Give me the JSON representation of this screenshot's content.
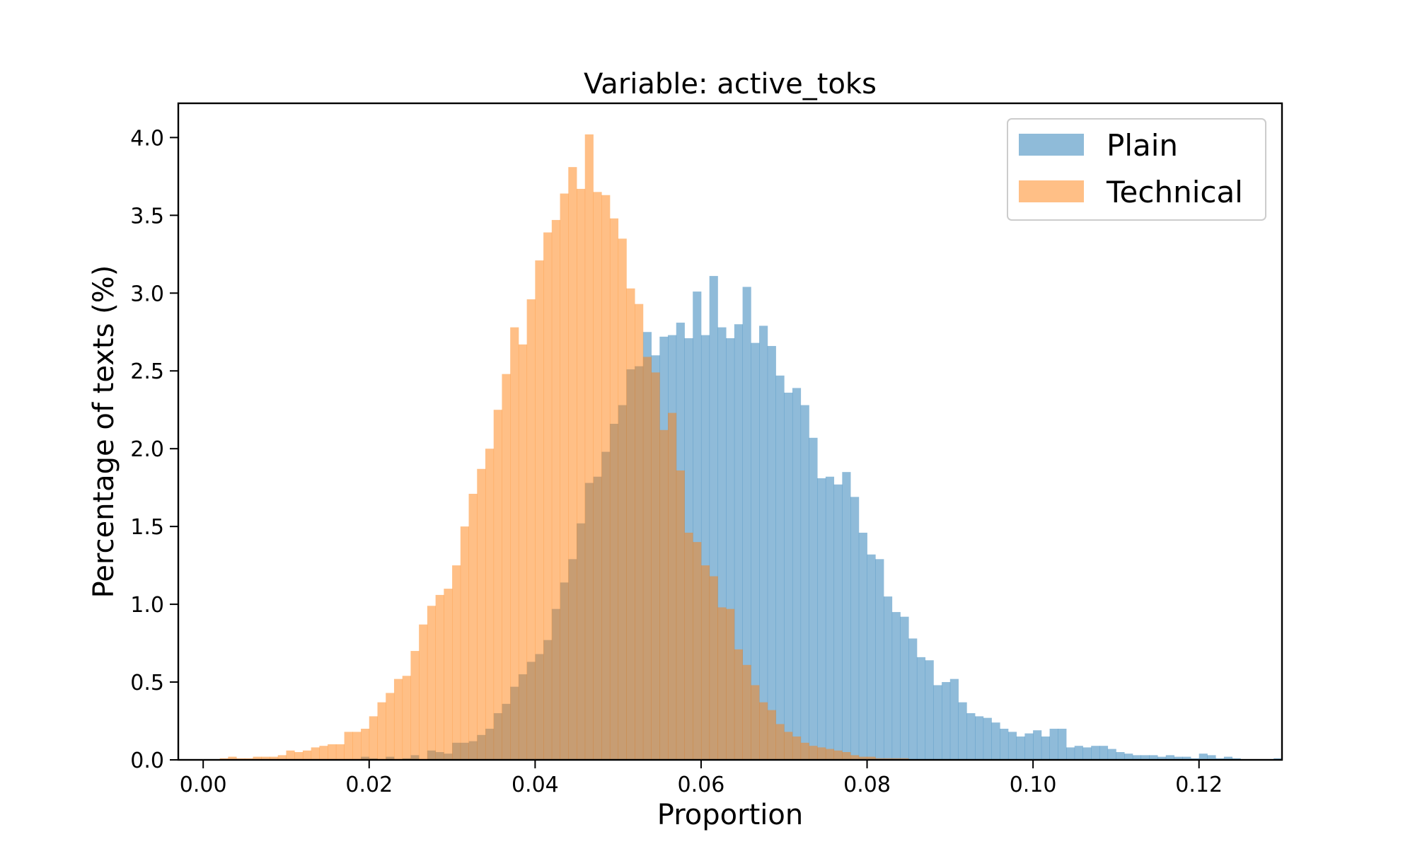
{
  "chart_data": {
    "type": "histogram",
    "title": "Variable: active_toks",
    "xlabel": "Proportion",
    "ylabel": "Percentage of texts (%)",
    "xlim": [
      -0.003,
      0.13
    ],
    "ylim": [
      0,
      4.22
    ],
    "x_ticks": [
      0.0,
      0.02,
      0.04,
      0.06,
      0.08,
      0.1,
      0.12
    ],
    "x_tick_labels": [
      "0.00",
      "0.02",
      "0.04",
      "0.06",
      "0.08",
      "0.10",
      "0.12"
    ],
    "y_ticks": [
      0,
      0.5,
      1.0,
      1.5,
      2.0,
      2.5,
      3.0,
      3.5,
      4.0
    ],
    "y_tick_labels": [
      "0.0",
      "0.5",
      "1.0",
      "1.5",
      "2.0",
      "2.5",
      "3.0",
      "3.5",
      "4.0"
    ],
    "legend": {
      "position": "upper-right"
    },
    "series": [
      {
        "name": "Plain",
        "color": "#1f77b4",
        "alpha": 0.5,
        "bin_start": 0.019,
        "bin_width": 0.001,
        "values": [
          0.02,
          0.01,
          0.0,
          0.02,
          0.0,
          0.01,
          0.03,
          0.0,
          0.06,
          0.05,
          0.04,
          0.11,
          0.11,
          0.12,
          0.16,
          0.2,
          0.3,
          0.36,
          0.47,
          0.55,
          0.63,
          0.68,
          0.77,
          0.97,
          1.14,
          1.29,
          1.52,
          1.78,
          1.82,
          1.98,
          2.16,
          2.28,
          2.51,
          2.53,
          2.75,
          2.6,
          2.72,
          2.73,
          2.81,
          2.71,
          3.01,
          2.73,
          3.11,
          2.78,
          2.71,
          2.8,
          3.04,
          2.68,
          2.79,
          2.66,
          2.47,
          2.36,
          2.39,
          2.28,
          2.07,
          1.81,
          1.82,
          1.77,
          1.85,
          1.69,
          1.46,
          1.32,
          1.29,
          1.05,
          0.95,
          0.92,
          0.78,
          0.66,
          0.64,
          0.48,
          0.5,
          0.52,
          0.37,
          0.3,
          0.28,
          0.27,
          0.24,
          0.2,
          0.18,
          0.15,
          0.17,
          0.19,
          0.15,
          0.2,
          0.2,
          0.08,
          0.09,
          0.08,
          0.09,
          0.09,
          0.07,
          0.05,
          0.04,
          0.03,
          0.03,
          0.03,
          0.02,
          0.03,
          0.02,
          0.02,
          0.01,
          0.04,
          0.03,
          0.01,
          0.02,
          0.01,
          0.0,
          0.0,
          0.0,
          0.0,
          0.01
        ]
      },
      {
        "name": "Technical",
        "color": "#ff7f0e",
        "alpha": 0.5,
        "bin_start": 0.002,
        "bin_width": 0.001,
        "values": [
          0.01,
          0.02,
          0.01,
          0.01,
          0.02,
          0.02,
          0.02,
          0.03,
          0.06,
          0.05,
          0.06,
          0.08,
          0.09,
          0.1,
          0.1,
          0.18,
          0.18,
          0.2,
          0.28,
          0.37,
          0.43,
          0.52,
          0.54,
          0.7,
          0.87,
          0.99,
          1.06,
          1.1,
          1.25,
          1.5,
          1.71,
          1.87,
          2.0,
          2.25,
          2.48,
          2.78,
          2.67,
          2.96,
          3.21,
          3.39,
          3.47,
          3.64,
          3.81,
          3.67,
          4.02,
          3.65,
          3.63,
          3.48,
          3.35,
          3.03,
          2.93,
          2.59,
          2.49,
          2.12,
          2.23,
          1.86,
          1.46,
          1.4,
          1.25,
          1.18,
          0.98,
          0.97,
          0.71,
          0.61,
          0.48,
          0.37,
          0.32,
          0.23,
          0.18,
          0.15,
          0.11,
          0.09,
          0.08,
          0.07,
          0.06,
          0.05,
          0.03,
          0.02,
          0.02,
          0.01,
          0.01,
          0.01,
          0.01,
          0.0,
          0.0,
          0.0,
          0.0,
          0.0,
          0.0,
          0.0
        ]
      }
    ]
  }
}
